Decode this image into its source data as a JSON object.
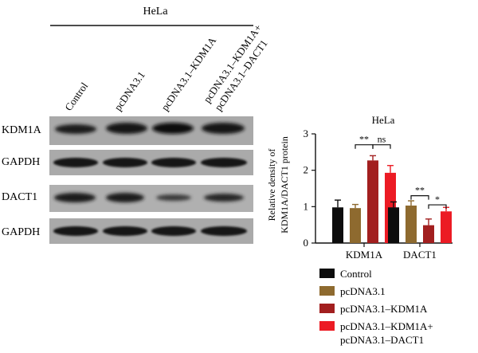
{
  "figure": {
    "cell_line_header": "HeLa",
    "lanes": [
      "Control",
      "pcDNA3.1",
      "pcDNA3.1–KDM1A",
      "pcDNA3.1–KDM1A+",
      "pcDNA3.1–DACT1"
    ],
    "blot_rows": [
      "KDM1A",
      "GAPDH",
      "DACT1",
      "GAPDH"
    ]
  },
  "chart_data": {
    "type": "bar",
    "title": "HeLa",
    "ylabel_line1": "Relative density of",
    "ylabel_line2": "KDM1A/DACT1 protein",
    "xlabel": "",
    "ylim": [
      0,
      3
    ],
    "yticks": [
      "0",
      "1",
      "2",
      "3"
    ],
    "categories": [
      "KDM1A",
      "DACT1"
    ],
    "series": [
      {
        "name": "Control",
        "color": "#0d0d0d",
        "values": [
          0.98,
          0.98
        ],
        "errors": [
          0.2,
          0.15
        ]
      },
      {
        "name": "pcDNA3.1",
        "color": "#8e6a2f",
        "values": [
          0.96,
          1.03
        ],
        "errors": [
          0.1,
          0.13
        ]
      },
      {
        "name": "pcDNA3.1–KDM1A",
        "color": "#a21f1f",
        "values": [
          2.27,
          0.49
        ],
        "errors": [
          0.13,
          0.17
        ]
      },
      {
        "name": "pcDNA3.1–KDM1A+\npcDNA3.1–DACT1",
        "color": "#ec1b24",
        "values": [
          1.93,
          0.87
        ],
        "errors": [
          0.2,
          0.11
        ]
      }
    ],
    "annotations": [
      {
        "category": "KDM1A",
        "from_series": 1,
        "to_series": 2,
        "label": "**"
      },
      {
        "category": "KDM1A",
        "from_series": 2,
        "to_series": 3,
        "label": "ns"
      },
      {
        "category": "DACT1",
        "from_series": 1,
        "to_series": 2,
        "label": "**"
      },
      {
        "category": "DACT1",
        "from_series": 2,
        "to_series": 3,
        "label": "*"
      }
    ],
    "legend_placement": "bottom",
    "grid": false
  }
}
